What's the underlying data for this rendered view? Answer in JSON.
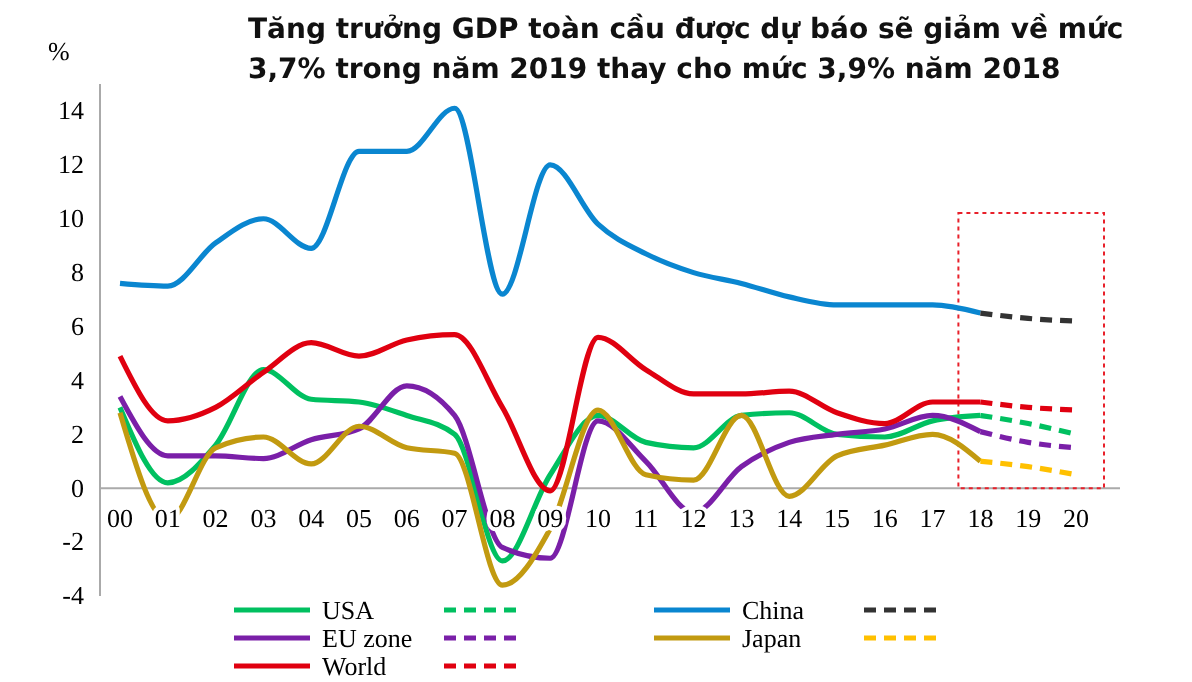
{
  "chart_data": {
    "type": "line",
    "title": "Tăng trưởng GDP toàn cầu được dự báo sẽ giảm về mức 3,7% trong năm 2019 thay cho mức 3,9% năm 2018",
    "ylabel": "%",
    "categories": [
      "00",
      "01",
      "02",
      "03",
      "04",
      "05",
      "06",
      "07",
      "08",
      "09",
      "10",
      "11",
      "12",
      "13",
      "14",
      "15",
      "16",
      "17",
      "18",
      "19",
      "20"
    ],
    "ylim": [
      -4,
      15
    ],
    "yticks": [
      -4,
      -2,
      0,
      2,
      4,
      6,
      8,
      10,
      12,
      14
    ],
    "grid": false,
    "legend": "bottom",
    "marker": "none",
    "series": [
      {
        "name": "USA",
        "color": "#00c060",
        "line_style": "solid",
        "values": [
          3.0,
          0.2,
          1.6,
          4.4,
          3.3,
          3.2,
          2.7,
          2.0,
          -2.7,
          0.5,
          2.7,
          1.7,
          1.5,
          2.7,
          2.8,
          2.0,
          1.9,
          2.5,
          2.7,
          null,
          null
        ]
      },
      {
        "color": "#00c060",
        "line_style": "dashed",
        "values": [
          null,
          null,
          null,
          null,
          null,
          null,
          null,
          null,
          null,
          null,
          null,
          null,
          null,
          null,
          null,
          null,
          null,
          null,
          2.7,
          2.4,
          2.0
        ]
      },
      {
        "name": "China",
        "color": "#0a86d0",
        "line_style": "solid",
        "values": [
          7.6,
          7.5,
          9.1,
          10.0,
          8.9,
          12.5,
          12.5,
          14.1,
          7.2,
          12.0,
          9.8,
          8.7,
          8.0,
          7.6,
          7.1,
          6.8,
          6.8,
          6.8,
          6.5,
          null,
          null
        ]
      },
      {
        "color": "#333333",
        "line_style": "dashed",
        "values": [
          null,
          null,
          null,
          null,
          null,
          null,
          null,
          null,
          null,
          null,
          null,
          null,
          null,
          null,
          null,
          null,
          null,
          null,
          6.5,
          6.3,
          6.2
        ]
      },
      {
        "name": "EU zone",
        "color": "#7a1fa8",
        "line_style": "solid",
        "values": [
          3.4,
          1.2,
          1.2,
          1.1,
          1.8,
          2.2,
          3.8,
          2.7,
          -2.2,
          -2.6,
          2.5,
          1.0,
          -0.9,
          0.8,
          1.7,
          2.0,
          2.2,
          2.7,
          2.1,
          null,
          null
        ]
      },
      {
        "color": "#7a1fa8",
        "line_style": "dashed",
        "values": [
          null,
          null,
          null,
          null,
          null,
          null,
          null,
          null,
          null,
          null,
          null,
          null,
          null,
          null,
          null,
          null,
          null,
          null,
          2.1,
          1.7,
          1.5
        ]
      },
      {
        "name": "Japan",
        "color": "#c29a10",
        "line_style": "solid",
        "values": [
          2.8,
          -1.2,
          1.5,
          1.9,
          0.9,
          2.3,
          1.5,
          1.3,
          -3.6,
          -1.5,
          2.9,
          0.5,
          0.3,
          2.7,
          -0.3,
          1.2,
          1.6,
          2.0,
          1.0,
          null,
          null
        ]
      },
      {
        "color": "#ffc000",
        "line_style": "dashed",
        "values": [
          null,
          null,
          null,
          null,
          null,
          null,
          null,
          null,
          null,
          null,
          null,
          null,
          null,
          null,
          null,
          null,
          null,
          null,
          1.0,
          0.8,
          0.5
        ]
      },
      {
        "name": "World",
        "color": "#e00010",
        "line_style": "solid",
        "values": [
          4.9,
          2.5,
          3.0,
          4.3,
          5.4,
          4.9,
          5.5,
          5.7,
          3.0,
          -0.1,
          5.6,
          4.4,
          3.5,
          3.5,
          3.6,
          2.8,
          2.4,
          3.2,
          3.2,
          null,
          null
        ]
      },
      {
        "color": "#e00010",
        "line_style": "dashed",
        "values": [
          null,
          null,
          null,
          null,
          null,
          null,
          null,
          null,
          null,
          null,
          null,
          null,
          null,
          null,
          null,
          null,
          null,
          null,
          3.2,
          3.0,
          2.9
        ]
      }
    ]
  }
}
